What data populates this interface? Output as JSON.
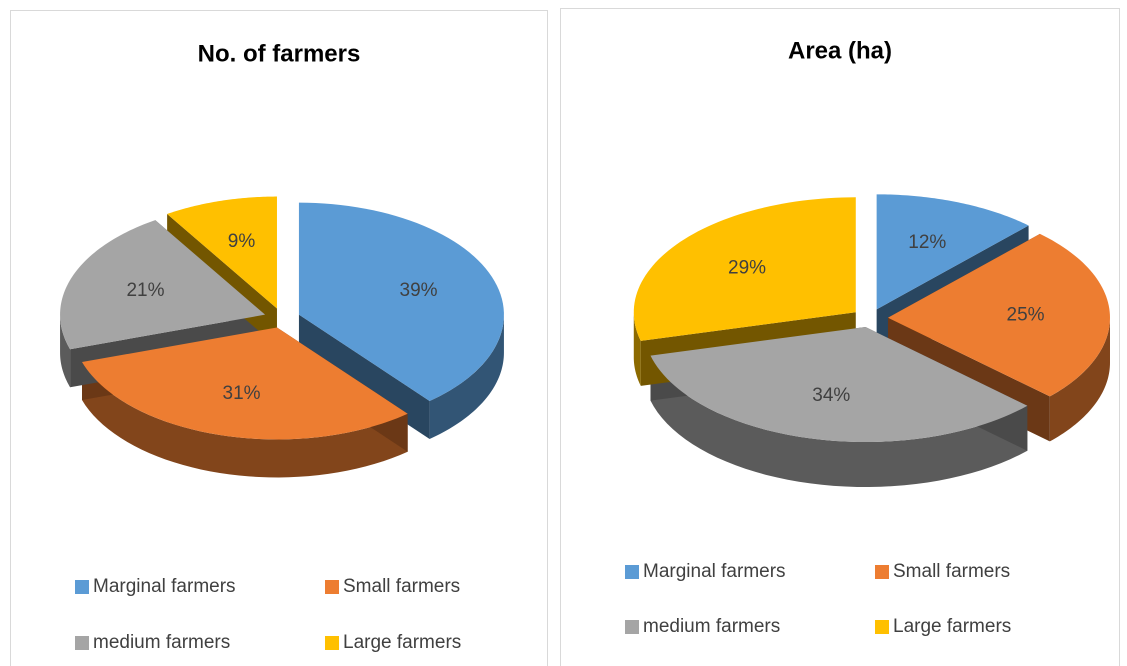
{
  "chart_data": [
    {
      "type": "pie",
      "title": "No. of farmers",
      "categories": [
        "Marginal farmers",
        "Small farmers",
        "medium farmers",
        "Large farmers"
      ],
      "values": [
        39,
        31,
        21,
        9
      ],
      "value_labels": [
        "39%",
        "31%",
        "21%",
        "9%"
      ],
      "colors": [
        "#5b9bd5",
        "#ed7d31",
        "#a5a5a5",
        "#ffc000"
      ]
    },
    {
      "type": "pie",
      "title": "Area (ha)",
      "categories": [
        "Marginal farmers",
        "Small farmers",
        "medium farmers",
        "Large farmers"
      ],
      "values": [
        12,
        25,
        34,
        29
      ],
      "value_labels": [
        "12%",
        "25%",
        "34%",
        "29%"
      ],
      "colors": [
        "#5b9bd5",
        "#ed7d31",
        "#a5a5a5",
        "#ffc000"
      ]
    }
  ]
}
